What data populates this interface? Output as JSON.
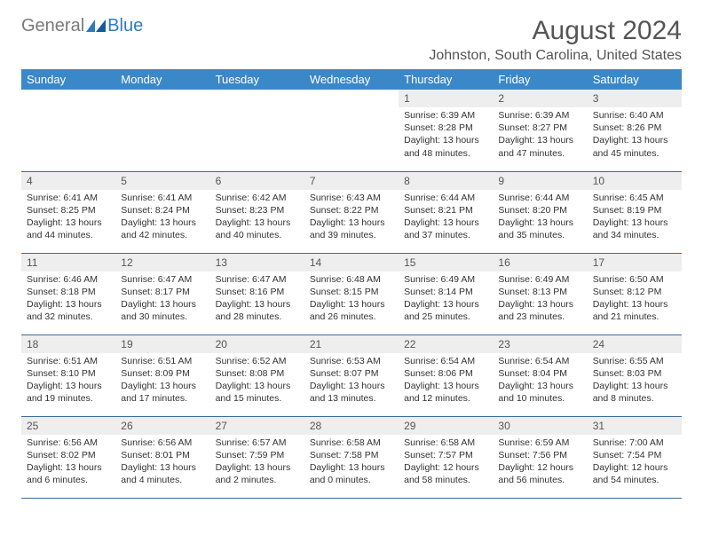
{
  "brand": {
    "text1": "General",
    "text2": "Blue"
  },
  "title": "August 2024",
  "location": "Johnston, South Carolina, United States",
  "colors": {
    "header_bg": "#3b88c8",
    "header_text": "#ffffff",
    "daynum_bg": "#eeeeee",
    "daynum_text": "#555555",
    "body_text": "#333333",
    "rule": "#3b6b99",
    "brand_gray": "#7a7a7a",
    "brand_blue": "#2f7bbf",
    "title_text": "#555555"
  },
  "weekdays": [
    "Sunday",
    "Monday",
    "Tuesday",
    "Wednesday",
    "Thursday",
    "Friday",
    "Saturday"
  ],
  "weeks": [
    [
      null,
      null,
      null,
      null,
      {
        "n": "1",
        "sr": "Sunrise: 6:39 AM",
        "ss": "Sunset: 8:28 PM",
        "dl": "Daylight: 13 hours and 48 minutes."
      },
      {
        "n": "2",
        "sr": "Sunrise: 6:39 AM",
        "ss": "Sunset: 8:27 PM",
        "dl": "Daylight: 13 hours and 47 minutes."
      },
      {
        "n": "3",
        "sr": "Sunrise: 6:40 AM",
        "ss": "Sunset: 8:26 PM",
        "dl": "Daylight: 13 hours and 45 minutes."
      }
    ],
    [
      {
        "n": "4",
        "sr": "Sunrise: 6:41 AM",
        "ss": "Sunset: 8:25 PM",
        "dl": "Daylight: 13 hours and 44 minutes."
      },
      {
        "n": "5",
        "sr": "Sunrise: 6:41 AM",
        "ss": "Sunset: 8:24 PM",
        "dl": "Daylight: 13 hours and 42 minutes."
      },
      {
        "n": "6",
        "sr": "Sunrise: 6:42 AM",
        "ss": "Sunset: 8:23 PM",
        "dl": "Daylight: 13 hours and 40 minutes."
      },
      {
        "n": "7",
        "sr": "Sunrise: 6:43 AM",
        "ss": "Sunset: 8:22 PM",
        "dl": "Daylight: 13 hours and 39 minutes."
      },
      {
        "n": "8",
        "sr": "Sunrise: 6:44 AM",
        "ss": "Sunset: 8:21 PM",
        "dl": "Daylight: 13 hours and 37 minutes."
      },
      {
        "n": "9",
        "sr": "Sunrise: 6:44 AM",
        "ss": "Sunset: 8:20 PM",
        "dl": "Daylight: 13 hours and 35 minutes."
      },
      {
        "n": "10",
        "sr": "Sunrise: 6:45 AM",
        "ss": "Sunset: 8:19 PM",
        "dl": "Daylight: 13 hours and 34 minutes."
      }
    ],
    [
      {
        "n": "11",
        "sr": "Sunrise: 6:46 AM",
        "ss": "Sunset: 8:18 PM",
        "dl": "Daylight: 13 hours and 32 minutes."
      },
      {
        "n": "12",
        "sr": "Sunrise: 6:47 AM",
        "ss": "Sunset: 8:17 PM",
        "dl": "Daylight: 13 hours and 30 minutes."
      },
      {
        "n": "13",
        "sr": "Sunrise: 6:47 AM",
        "ss": "Sunset: 8:16 PM",
        "dl": "Daylight: 13 hours and 28 minutes."
      },
      {
        "n": "14",
        "sr": "Sunrise: 6:48 AM",
        "ss": "Sunset: 8:15 PM",
        "dl": "Daylight: 13 hours and 26 minutes."
      },
      {
        "n": "15",
        "sr": "Sunrise: 6:49 AM",
        "ss": "Sunset: 8:14 PM",
        "dl": "Daylight: 13 hours and 25 minutes."
      },
      {
        "n": "16",
        "sr": "Sunrise: 6:49 AM",
        "ss": "Sunset: 8:13 PM",
        "dl": "Daylight: 13 hours and 23 minutes."
      },
      {
        "n": "17",
        "sr": "Sunrise: 6:50 AM",
        "ss": "Sunset: 8:12 PM",
        "dl": "Daylight: 13 hours and 21 minutes."
      }
    ],
    [
      {
        "n": "18",
        "sr": "Sunrise: 6:51 AM",
        "ss": "Sunset: 8:10 PM",
        "dl": "Daylight: 13 hours and 19 minutes."
      },
      {
        "n": "19",
        "sr": "Sunrise: 6:51 AM",
        "ss": "Sunset: 8:09 PM",
        "dl": "Daylight: 13 hours and 17 minutes."
      },
      {
        "n": "20",
        "sr": "Sunrise: 6:52 AM",
        "ss": "Sunset: 8:08 PM",
        "dl": "Daylight: 13 hours and 15 minutes."
      },
      {
        "n": "21",
        "sr": "Sunrise: 6:53 AM",
        "ss": "Sunset: 8:07 PM",
        "dl": "Daylight: 13 hours and 13 minutes."
      },
      {
        "n": "22",
        "sr": "Sunrise: 6:54 AM",
        "ss": "Sunset: 8:06 PM",
        "dl": "Daylight: 13 hours and 12 minutes."
      },
      {
        "n": "23",
        "sr": "Sunrise: 6:54 AM",
        "ss": "Sunset: 8:04 PM",
        "dl": "Daylight: 13 hours and 10 minutes."
      },
      {
        "n": "24",
        "sr": "Sunrise: 6:55 AM",
        "ss": "Sunset: 8:03 PM",
        "dl": "Daylight: 13 hours and 8 minutes."
      }
    ],
    [
      {
        "n": "25",
        "sr": "Sunrise: 6:56 AM",
        "ss": "Sunset: 8:02 PM",
        "dl": "Daylight: 13 hours and 6 minutes."
      },
      {
        "n": "26",
        "sr": "Sunrise: 6:56 AM",
        "ss": "Sunset: 8:01 PM",
        "dl": "Daylight: 13 hours and 4 minutes."
      },
      {
        "n": "27",
        "sr": "Sunrise: 6:57 AM",
        "ss": "Sunset: 7:59 PM",
        "dl": "Daylight: 13 hours and 2 minutes."
      },
      {
        "n": "28",
        "sr": "Sunrise: 6:58 AM",
        "ss": "Sunset: 7:58 PM",
        "dl": "Daylight: 13 hours and 0 minutes."
      },
      {
        "n": "29",
        "sr": "Sunrise: 6:58 AM",
        "ss": "Sunset: 7:57 PM",
        "dl": "Daylight: 12 hours and 58 minutes."
      },
      {
        "n": "30",
        "sr": "Sunrise: 6:59 AM",
        "ss": "Sunset: 7:56 PM",
        "dl": "Daylight: 12 hours and 56 minutes."
      },
      {
        "n": "31",
        "sr": "Sunrise: 7:00 AM",
        "ss": "Sunset: 7:54 PM",
        "dl": "Daylight: 12 hours and 54 minutes."
      }
    ]
  ]
}
